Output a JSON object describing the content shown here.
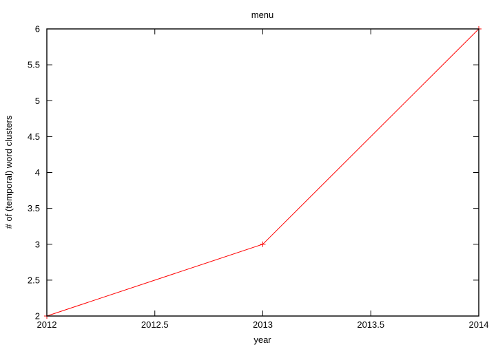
{
  "chart_data": {
    "type": "line",
    "title": "menu",
    "xlabel": "year",
    "ylabel": "# of (temporal) word clusters",
    "xlim": [
      2012,
      2014
    ],
    "ylim": [
      2,
      6
    ],
    "x_ticks": [
      2012,
      2012.5,
      2013,
      2013.5,
      2014
    ],
    "y_ticks": [
      2,
      2.5,
      3,
      3.5,
      4,
      4.5,
      5,
      5.5,
      6
    ],
    "grid": false,
    "legend": "none",
    "series": [
      {
        "x": [
          2012,
          2013,
          2014
        ],
        "values": [
          2,
          3,
          6
        ],
        "color": "#ff0000",
        "marker": "plus"
      }
    ]
  }
}
